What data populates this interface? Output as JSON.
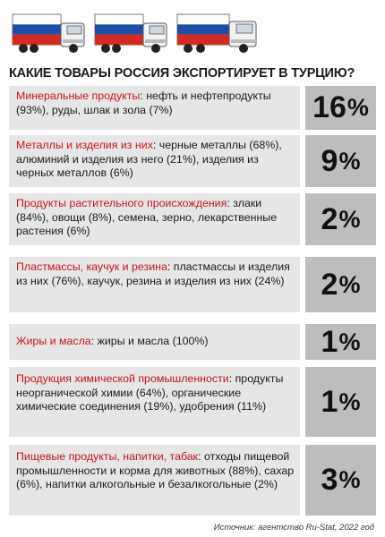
{
  "title": "КАКИЕ ТОВАРЫ РОССИЯ ЭКСПОРТИРУЕТ В ТУРЦИЮ?",
  "colors": {
    "accent_red": "#c4151c",
    "row_bg": "#e6e6e6",
    "value_bg": "#bdbdbd",
    "flag_white": "#ffffff",
    "flag_blue": "#1f4ea8",
    "flag_red": "#d52b1e"
  },
  "illustration": {
    "icon": "truck-with-russian-flag-trailer-icon",
    "count": 3
  },
  "rows": [
    {
      "category": "Минеральные продукты",
      "details": ": нефть и нефтепродукты (93%), руды, шлак и зола (7%)",
      "value": "16",
      "unit": "%"
    },
    {
      "category": "Металлы и изделия из них",
      "details": ": черные металлы (68%), алюминий и изделия из него (21%), изделия из черных металлов (6%)",
      "value": "9",
      "unit": "%"
    },
    {
      "category": "Продукты растительного происхождения",
      "details": ": злаки (84%), овощи (8%), семена, зерно, лекарственные растения (6%)",
      "value": "2",
      "unit": "%"
    },
    {
      "category": "Пластмассы, каучук и резина",
      "details": ": пластмассы и изделия из них (76%), каучук, резина и изделия из них (24%)",
      "value": "2",
      "unit": "%"
    },
    {
      "category": "Жиры и масла",
      "details": ": жиры и масла (100%)",
      "value": "1",
      "unit": "%"
    },
    {
      "category": "Продукция химической промышленности",
      "details": ": продукты неорганической химии (64%), органические химические соединения (19%), удобрения (11%)",
      "value": "1",
      "unit": "%"
    },
    {
      "category": "Пищевые продукты, напитки, табак",
      "details": ": отходы пищевой промышленности и корма для животных (88%), сахар (6%), напитки алкогольные и безалкогольные (2%)",
      "value": "3",
      "unit": "%"
    }
  ],
  "source": "Источник: агентство Ru-Stat, 2022 год"
}
